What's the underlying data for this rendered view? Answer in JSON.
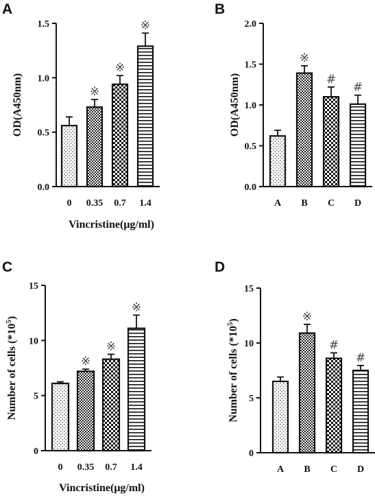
{
  "figure": {
    "chart_data": [
      {
        "type": "bar",
        "panel": "A",
        "xlabel": "Vincristine(μg/ml)",
        "ylabel": "OD(A450nm)",
        "ylim": [
          0,
          1.5
        ],
        "yticks": [
          "0.0",
          "0.5",
          "1.0",
          "1.5"
        ],
        "categories": [
          "0",
          "0.35",
          "0.7",
          "1.4"
        ],
        "values": [
          0.56,
          0.73,
          0.94,
          1.29
        ],
        "errors": [
          0.08,
          0.07,
          0.08,
          0.12
        ],
        "significance": [
          "",
          "※",
          "※",
          "※"
        ],
        "patterns": [
          "dots",
          "checker-fine",
          "checker",
          "hlines"
        ]
      },
      {
        "type": "bar",
        "panel": "B",
        "xlabel": "",
        "ylabel": "OD(A450nm)",
        "ylim": [
          0,
          2.0
        ],
        "yticks": [
          "0.0",
          "0.5",
          "1.0",
          "1.5",
          "2.0"
        ],
        "categories": [
          "A",
          "B",
          "C",
          "D"
        ],
        "values": [
          0.62,
          1.39,
          1.1,
          1.01
        ],
        "errors": [
          0.07,
          0.09,
          0.12,
          0.11
        ],
        "significance": [
          "",
          "※",
          "#",
          "#"
        ],
        "patterns": [
          "dots",
          "checker-fine",
          "checker",
          "hlines"
        ]
      },
      {
        "type": "bar",
        "panel": "C",
        "xlabel": "Vincristine(μg/ml)",
        "ylabel": "Number of cells (*10",
        "ylabel_sup": "5",
        "ylabel_end": ")",
        "ylim": [
          0,
          15
        ],
        "yticks": [
          "0",
          "5",
          "10",
          "15"
        ],
        "categories": [
          "0",
          "0.35",
          "0.7",
          "1.4"
        ],
        "values": [
          6.1,
          7.2,
          8.3,
          11.1
        ],
        "errors": [
          0.15,
          0.2,
          0.45,
          1.2
        ],
        "significance": [
          "",
          "※",
          "※",
          "※"
        ],
        "patterns": [
          "dots",
          "checker-fine",
          "checker",
          "hlines"
        ]
      },
      {
        "type": "bar",
        "panel": "D",
        "xlabel": "",
        "ylabel": "Number of cells (*10",
        "ylabel_sup": "5",
        "ylabel_end": ")",
        "ylim": [
          0,
          15
        ],
        "yticks": [
          "0",
          "5",
          "10",
          "15"
        ],
        "categories": [
          "A",
          "B",
          "C",
          "D"
        ],
        "values": [
          6.5,
          10.9,
          8.6,
          7.5
        ],
        "errors": [
          0.4,
          0.8,
          0.5,
          0.45
        ],
        "significance": [
          "",
          "※",
          "#",
          "#"
        ],
        "patterns": [
          "dots",
          "checker-fine",
          "checker",
          "hlines"
        ]
      }
    ]
  }
}
